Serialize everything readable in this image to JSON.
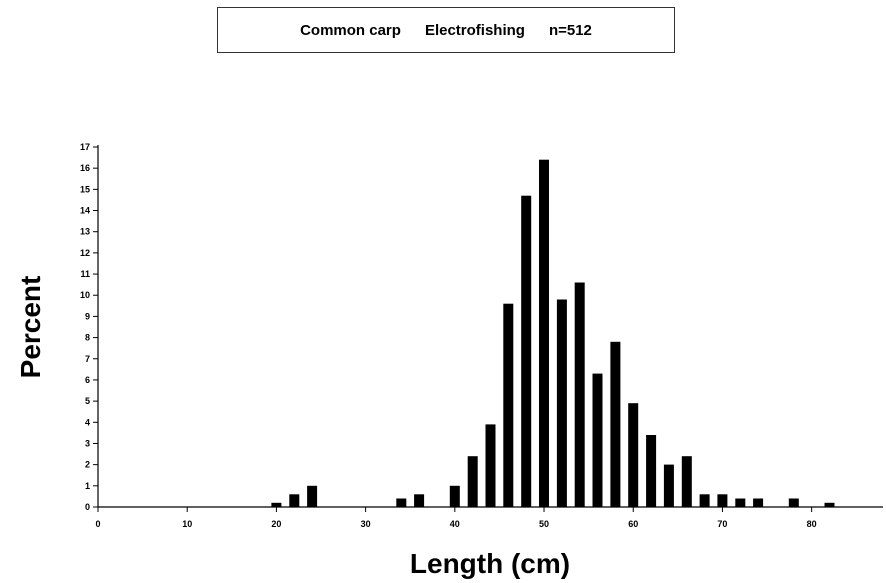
{
  "title": {
    "species": "Common carp",
    "method": "Electrofishing",
    "n": "n=512"
  },
  "chart_data": {
    "type": "bar",
    "xlabel": "Length (cm)",
    "ylabel": "Percent",
    "xlim": [
      0,
      88
    ],
    "ylim": [
      0,
      17
    ],
    "x_ticks": [
      0,
      10,
      20,
      30,
      40,
      50,
      60,
      70,
      80
    ],
    "y_ticks": [
      0,
      1,
      2,
      3,
      4,
      5,
      6,
      7,
      8,
      9,
      10,
      11,
      12,
      13,
      14,
      15,
      16,
      17
    ],
    "grid": false,
    "legend": "none",
    "bar_color": "#000000",
    "x": [
      20,
      22,
      24,
      34,
      36,
      40,
      42,
      44,
      46,
      48,
      50,
      52,
      54,
      56,
      58,
      60,
      62,
      64,
      66,
      68,
      70,
      72,
      74,
      78,
      82
    ],
    "values": [
      0.2,
      0.6,
      1.0,
      0.4,
      0.6,
      1.0,
      2.4,
      3.9,
      9.6,
      14.7,
      16.4,
      9.8,
      10.6,
      6.3,
      7.8,
      4.9,
      3.4,
      2.0,
      2.4,
      0.6,
      0.6,
      0.4,
      0.4,
      0.4,
      0.2
    ]
  }
}
